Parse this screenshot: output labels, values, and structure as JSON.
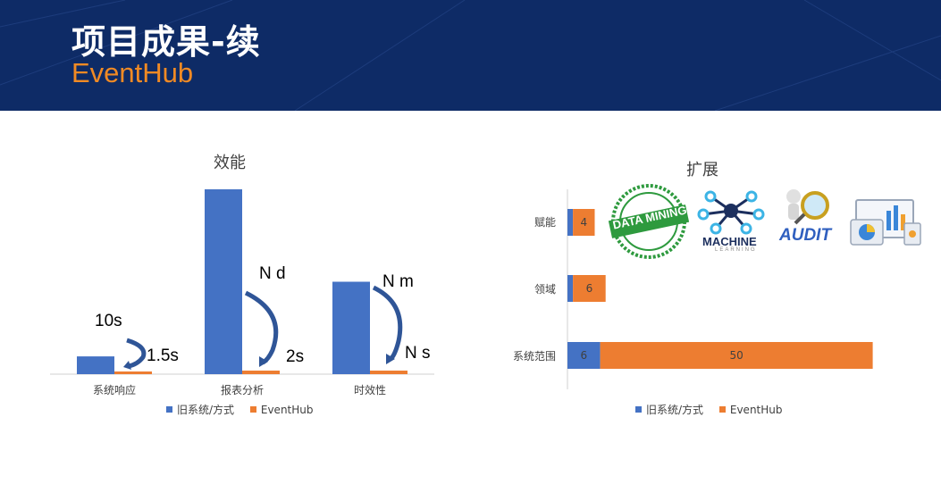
{
  "header": {
    "title": "项目成果-续",
    "subtitle": "EventHub"
  },
  "colors": {
    "old": "#4472c4",
    "new": "#ed7d31",
    "header_bg": "#0e2b66",
    "accent": "#f08a24"
  },
  "chart_data": [
    {
      "type": "bar",
      "title": "效能",
      "categories": [
        "系统响应",
        "报表分析",
        "时效性"
      ],
      "series": [
        {
          "name": "旧系统/方式",
          "values": [
            5,
            52,
            26
          ]
        },
        {
          "name": "EventHub",
          "values": [
            0.7,
            1,
            1
          ]
        }
      ],
      "annotations": [
        {
          "text": "10s"
        },
        {
          "text": "1.5s"
        },
        {
          "text": "N d"
        },
        {
          "text": "2s"
        },
        {
          "text": "N m"
        },
        {
          "text": "N s"
        }
      ],
      "legend": "bottom"
    },
    {
      "type": "bar",
      "orientation": "horizontal",
      "stacked": true,
      "title": "扩展",
      "categories": [
        "赋能",
        "领域",
        "系统范围"
      ],
      "series": [
        {
          "name": "旧系统/方式",
          "values": [
            1,
            1,
            6
          ],
          "labels": [
            "",
            "",
            "6"
          ]
        },
        {
          "name": "EventHub",
          "values": [
            4,
            6,
            50
          ],
          "labels": [
            "4",
            "6",
            "50"
          ]
        }
      ],
      "legend": "bottom"
    }
  ],
  "icons": {
    "data_mining": {
      "name": "data-mining-stamp-icon",
      "text": "DATA MINING"
    },
    "machine_learning": {
      "name": "machine-learning-icon",
      "text": "MACHINE",
      "subtext": "LEARNING"
    },
    "audit": {
      "name": "audit-icon",
      "text": "AUDIT"
    },
    "dashboard": {
      "name": "dashboard-icon"
    }
  }
}
